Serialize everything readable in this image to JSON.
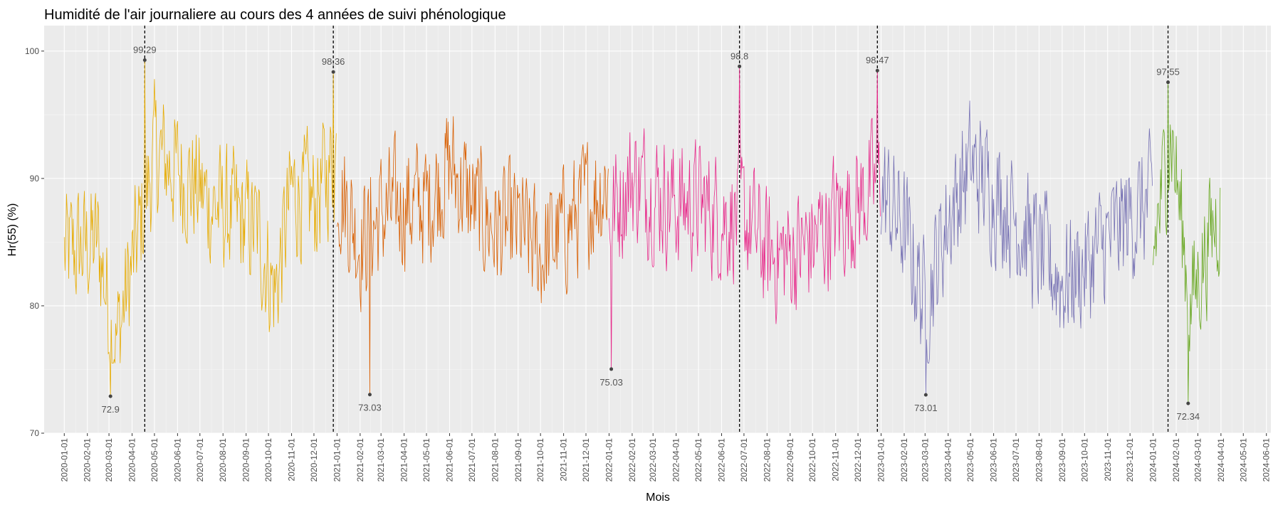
{
  "chart_data": {
    "type": "line",
    "title": "Humidité de l'air journaliere au cours des 4 années de suivi phénologique",
    "xlabel": "Mois",
    "ylabel": "Hr(55) (%)",
    "ylim": [
      70,
      102
    ],
    "xlim": [
      "2019-12-05",
      "2024-06-07"
    ],
    "y_ticks": [
      70,
      80,
      90,
      100
    ],
    "x_ticks": [
      "2020-01-01",
      "2020-02-01",
      "2020-03-01",
      "2020-04-01",
      "2020-05-01",
      "2020-06-01",
      "2020-07-01",
      "2020-08-01",
      "2020-09-01",
      "2020-10-01",
      "2020-11-01",
      "2020-12-01",
      "2021-01-01",
      "2021-02-01",
      "2021-03-01",
      "2021-04-01",
      "2021-05-01",
      "2021-06-01",
      "2021-07-01",
      "2021-08-01",
      "2021-09-01",
      "2021-10-01",
      "2021-11-01",
      "2021-12-01",
      "2022-01-01",
      "2022-02-01",
      "2022-03-01",
      "2022-04-01",
      "2022-05-01",
      "2022-06-01",
      "2022-07-01",
      "2022-08-01",
      "2022-09-01",
      "2022-10-01",
      "2022-11-01",
      "2022-12-01",
      "2023-01-01",
      "2023-02-01",
      "2023-03-01",
      "2023-04-01",
      "2023-05-01",
      "2023-06-01",
      "2023-07-01",
      "2023-08-01",
      "2023-09-01",
      "2023-10-01",
      "2023-11-01",
      "2023-12-01",
      "2024-01-01",
      "2024-02-01",
      "2024-03-01",
      "2024-04-01",
      "2024-05-01",
      "2024-06-01"
    ],
    "grid": true,
    "legend": "none",
    "series": [
      {
        "color": "#e6ab02",
        "start": "2020-01-01",
        "end": "2020-12-31",
        "profile": [
          [
            "2020-01-01",
            84
          ],
          [
            "2020-02-15",
            85
          ],
          [
            "2020-03-10",
            77
          ],
          [
            "2020-04-15",
            87
          ],
          [
            "2020-05-01",
            92
          ],
          [
            "2020-06-15",
            90
          ],
          [
            "2020-07-15",
            88
          ],
          [
            "2020-08-15",
            87
          ],
          [
            "2020-09-15",
            86
          ],
          [
            "2020-10-10",
            81
          ],
          [
            "2020-11-01",
            89
          ],
          [
            "2020-12-01",
            88
          ],
          [
            "2020-12-31",
            92
          ]
        ]
      },
      {
        "color": "#d95f02",
        "start": "2021-01-01",
        "end": "2021-12-31",
        "profile": [
          [
            "2021-01-01",
            90
          ],
          [
            "2021-02-01",
            85
          ],
          [
            "2021-03-01",
            87
          ],
          [
            "2021-04-01",
            88
          ],
          [
            "2021-05-01",
            88
          ],
          [
            "2021-06-01",
            91
          ],
          [
            "2021-07-01",
            88
          ],
          [
            "2021-08-01",
            86
          ],
          [
            "2021-09-01",
            86
          ],
          [
            "2021-10-01",
            84
          ],
          [
            "2021-11-01",
            86
          ],
          [
            "2021-12-01",
            88
          ],
          [
            "2021-12-31",
            90
          ]
        ]
      },
      {
        "color": "#e7298a",
        "start": "2022-01-01",
        "end": "2022-12-31",
        "profile": [
          [
            "2022-01-01",
            87
          ],
          [
            "2022-02-01",
            90
          ],
          [
            "2022-03-01",
            89
          ],
          [
            "2022-04-01",
            88
          ],
          [
            "2022-05-01",
            88
          ],
          [
            "2022-06-01",
            87
          ],
          [
            "2022-07-01",
            87
          ],
          [
            "2022-08-01",
            84
          ],
          [
            "2022-09-01",
            84
          ],
          [
            "2022-10-01",
            85
          ],
          [
            "2022-11-01",
            87
          ],
          [
            "2022-12-01",
            88
          ],
          [
            "2022-12-31",
            90
          ]
        ]
      },
      {
        "color": "#7570b3",
        "start": "2023-01-01",
        "end": "2023-12-31",
        "profile": [
          [
            "2023-01-01",
            89
          ],
          [
            "2023-02-01",
            86
          ],
          [
            "2023-03-01",
            80
          ],
          [
            "2023-04-01",
            87
          ],
          [
            "2023-05-01",
            91
          ],
          [
            "2023-06-01",
            89
          ],
          [
            "2023-07-01",
            87
          ],
          [
            "2023-08-01",
            84
          ],
          [
            "2023-09-01",
            82
          ],
          [
            "2023-10-01",
            83
          ],
          [
            "2023-11-01",
            85
          ],
          [
            "2023-12-01",
            87
          ],
          [
            "2023-12-31",
            88
          ]
        ]
      },
      {
        "color": "#66a61e",
        "start": "2024-01-01",
        "end": "2024-03-31",
        "profile": [
          [
            "2024-01-01",
            84
          ],
          [
            "2024-01-25",
            94
          ],
          [
            "2024-02-20",
            80
          ],
          [
            "2024-03-10",
            84
          ],
          [
            "2024-03-31",
            88
          ]
        ]
      }
    ],
    "annotations": [
      {
        "date": "2020-03-03",
        "value": 72.9,
        "label": "72.9",
        "position": "below",
        "vline": false
      },
      {
        "date": "2020-04-18",
        "value": 99.29,
        "label": "99.29",
        "position": "above",
        "vline": true
      },
      {
        "date": "2020-12-27",
        "value": 98.36,
        "label": "98.36",
        "position": "above",
        "vline": true
      },
      {
        "date": "2021-02-14",
        "value": 73.03,
        "label": "73.03",
        "position": "below",
        "vline": false
      },
      {
        "date": "2022-01-04",
        "value": 75.03,
        "label": "75.03",
        "position": "below",
        "vline": false
      },
      {
        "date": "2022-06-25",
        "value": 98.8,
        "label": "98.8",
        "position": "above",
        "vline": true
      },
      {
        "date": "2022-12-27",
        "value": 98.47,
        "label": "98.47",
        "position": "above",
        "vline": true
      },
      {
        "date": "2023-03-02",
        "value": 73.01,
        "label": "73.01",
        "position": "below",
        "vline": false
      },
      {
        "date": "2024-01-21",
        "value": 97.55,
        "label": "97.55",
        "position": "above",
        "vline": true
      },
      {
        "date": "2024-02-17",
        "value": 72.34,
        "label": "72.34",
        "position": "below",
        "vline": false
      }
    ]
  }
}
